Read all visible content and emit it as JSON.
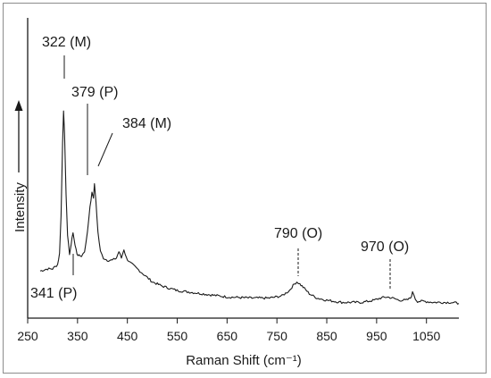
{
  "chart_data": {
    "type": "line",
    "xlabel": "Raman Shift (cm⁻¹)",
    "ylabel": "Intensity",
    "x_ticks": [
      "250",
      "350",
      "450",
      "550",
      "650",
      "750",
      "850",
      "950",
      "1050"
    ],
    "xlim": [
      250,
      1115
    ],
    "ylim": [
      0,
      100
    ],
    "grid": false,
    "legend": "none",
    "line_color": "#1a1a1a",
    "series": [
      {
        "x": [
          275,
          290,
          300,
          305,
          310,
          314,
          317,
          320,
          322,
          324,
          327,
          330,
          334,
          337,
          341,
          345,
          349,
          353,
          358,
          364,
          370,
          375,
          379,
          382,
          384,
          387,
          391,
          396,
          402,
          410,
          420,
          428,
          433,
          438,
          443,
          448,
          455,
          465,
          475,
          485,
          500,
          520,
          550,
          600,
          650,
          700,
          735,
          760,
          775,
          785,
          790,
          796,
          805,
          815,
          830,
          850,
          880,
          920,
          945,
          958,
          970,
          982,
          995,
          1010,
          1018,
          1022,
          1025,
          1028,
          1032,
          1045,
          1065,
          1085,
          1100,
          1115
        ],
        "y": [
          16,
          17,
          17,
          18,
          19,
          24,
          42,
          75,
          90,
          80,
          52,
          32,
          24,
          28,
          34,
          28,
          24,
          23,
          23,
          25,
          34,
          46,
          52,
          50,
          56,
          48,
          34,
          25,
          22,
          21,
          21,
          22,
          25,
          22,
          26,
          22,
          20,
          18,
          16,
          14,
          11,
          9,
          7,
          5.5,
          4,
          3.5,
          3.5,
          4.5,
          7,
          10,
          11,
          10,
          8,
          5.5,
          3.5,
          2.5,
          1.5,
          1.5,
          2.5,
          3.5,
          4,
          3.5,
          2.5,
          2.5,
          3.5,
          6,
          5,
          3,
          2,
          2,
          1.5,
          1.5,
          1.5,
          1
        ]
      }
    ],
    "annotations": [
      {
        "label": "322 (M)",
        "x": 322
      },
      {
        "label": "379 (P)",
        "x": 379
      },
      {
        "label": "384 (M)",
        "x": 384
      },
      {
        "label": "341 (P)",
        "x": 341
      },
      {
        "label": "790 (O)",
        "x": 790
      },
      {
        "label": "970 (O)",
        "x": 970
      }
    ]
  }
}
